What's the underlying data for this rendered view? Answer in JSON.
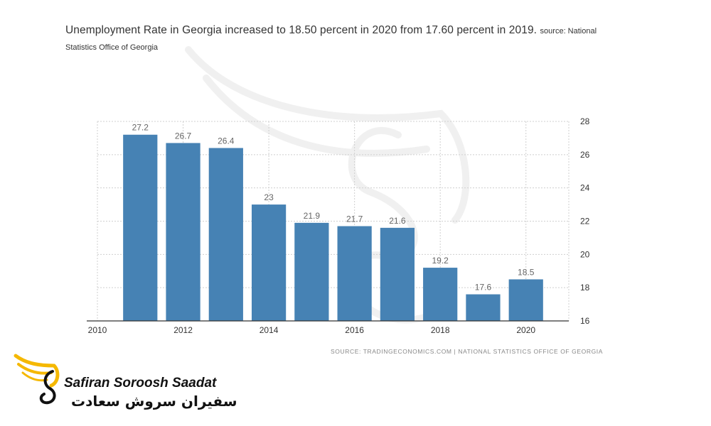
{
  "header": {
    "title": "Unemployment Rate in Georgia increased to 18.50 percent in 2020 from 17.60 percent in 2019.",
    "source_prefix": "source: National",
    "source_rest": "Statistics Office of Georgia"
  },
  "footer": {
    "source_line": "SOURCE: TRADINGECONOMICS.COM | NATIONAL STATISTICS OFFICE OF GEORGIA"
  },
  "logo": {
    "name_en": "Safiran Soroosh Saadat",
    "name_fa": "سفیران سروش سعادت"
  },
  "colors": {
    "bar": "#4682b4",
    "logo_accent": "#f5b800"
  },
  "chart_data": {
    "type": "bar",
    "x": [
      2011,
      2012,
      2013,
      2014,
      2015,
      2016,
      2017,
      2018,
      2019,
      2020
    ],
    "values": [
      27.2,
      26.7,
      26.4,
      23,
      21.9,
      21.7,
      21.6,
      19.2,
      17.6,
      18.5
    ],
    "data_labels": [
      "27.2",
      "26.7",
      "26.4",
      "23",
      "21.9",
      "21.7",
      "21.6",
      "19.2",
      "17.6",
      "18.5"
    ],
    "xlim": [
      2010,
      2021
    ],
    "x_ticks": [
      "2010",
      "2012",
      "2014",
      "2016",
      "2018",
      "2020"
    ],
    "ylim": [
      16,
      28
    ],
    "y_ticks": [
      "16",
      "18",
      "20",
      "22",
      "24",
      "26",
      "28"
    ],
    "y_axis_side": "right",
    "grid": true
  }
}
